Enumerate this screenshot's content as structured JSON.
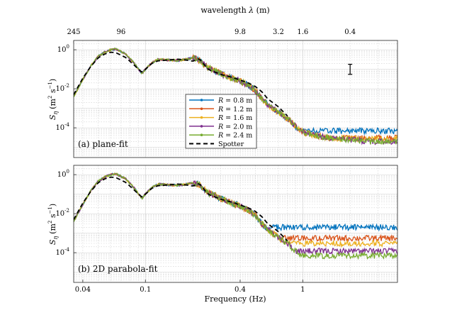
{
  "chart_data": {
    "type": "line",
    "xscale": "log",
    "yscale": "log",
    "xlim": [
      0.035,
      4.0
    ],
    "ylim": [
      3e-06,
      3.0
    ],
    "xlabel": "Frequency (Hz)",
    "ylabel_var": "S",
    "ylabel_sub": "η",
    "ylabel_units": "(m",
    "ylabel_units_sup": "2",
    "ylabel_units_mid": " s",
    "ylabel_units_sup2": "−1",
    "ylabel_units_end": ")",
    "x_ticks": [
      {
        "value": 0.04,
        "label": "0.04"
      },
      {
        "value": 0.1,
        "label": "0.1"
      },
      {
        "value": 0.4,
        "label": "0.4"
      },
      {
        "value": 1,
        "label": "1"
      }
    ],
    "y_ticks": [
      {
        "value": 1,
        "base": "10",
        "exp": "0"
      },
      {
        "value": 0.01,
        "base": "10",
        "exp": "-2"
      },
      {
        "value": 0.0001,
        "base": "10",
        "exp": "-4"
      }
    ],
    "top_axis": {
      "label_pre": "wavelength ",
      "label_sym": "λ",
      "label_post": " (m)",
      "ticks": [
        {
          "freq": 0.035,
          "label": "245"
        },
        {
          "freq": 0.07,
          "label": "96"
        },
        {
          "freq": 0.4,
          "label": "9.8"
        },
        {
          "freq": 0.7,
          "label": "3.2"
        },
        {
          "freq": 1.0,
          "label": "1.6"
        },
        {
          "freq": 2.0,
          "label": "0.4"
        }
      ]
    },
    "error_bar": {
      "freq": 2.0,
      "lower": 0.055,
      "upper": 0.18
    },
    "panels": [
      {
        "label": "(a) plane-fit"
      },
      {
        "label": "(b) 2D parabola-fit"
      }
    ],
    "spectrum_shape": {
      "freqs": [
        0.035,
        0.04,
        0.045,
        0.05,
        0.055,
        0.06,
        0.065,
        0.075,
        0.085,
        0.095,
        0.1,
        0.11,
        0.12,
        0.14,
        0.16,
        0.18,
        0.2,
        0.22,
        0.25,
        0.28,
        0.3,
        0.35,
        0.4,
        0.45,
        0.5,
        0.55,
        0.6,
        0.7,
        0.8,
        0.9,
        1.0,
        1.2,
        1.5,
        2.0,
        2.5,
        3.0,
        4.0
      ],
      "values": [
        0.004,
        0.03,
        0.15,
        0.45,
        0.75,
        1.0,
        1.1,
        0.6,
        0.2,
        0.06,
        0.1,
        0.22,
        0.32,
        0.3,
        0.28,
        0.32,
        0.38,
        0.3,
        0.12,
        0.08,
        0.06,
        0.035,
        0.025,
        0.015,
        0.008,
        0.003,
        0.0015,
        0.0006,
        0.0003,
        0.00012,
        6e-05,
        4e-05,
        3e-05,
        2.5e-05,
        2e-05,
        2e-05,
        2e-05
      ]
    },
    "spotter": {
      "name": "Spotter",
      "freqs": [
        0.035,
        0.04,
        0.045,
        0.05,
        0.055,
        0.06,
        0.065,
        0.075,
        0.085,
        0.095,
        0.1,
        0.11,
        0.12,
        0.14,
        0.16,
        0.18,
        0.2,
        0.22,
        0.25,
        0.3,
        0.35,
        0.4,
        0.45,
        0.5,
        0.55,
        0.6,
        0.7,
        0.8
      ],
      "values": [
        0.005,
        0.035,
        0.14,
        0.38,
        0.6,
        0.75,
        0.7,
        0.4,
        0.16,
        0.07,
        0.1,
        0.2,
        0.27,
        0.3,
        0.33,
        0.3,
        0.26,
        0.35,
        0.1,
        0.055,
        0.04,
        0.028,
        0.02,
        0.013,
        0.007,
        0.003,
        0.0012,
        0.0004
      ]
    },
    "series": [
      {
        "name_var": "R",
        "name_value": " = 0.8 m",
        "color": "#0072BD",
        "panels": [
          {
            "tail_start": 0.5,
            "floor": 7e-05
          },
          {
            "tail_start": 0.5,
            "floor": 0.002
          }
        ]
      },
      {
        "name_var": "R",
        "name_value": " = 1.2 m",
        "color": "#D95319",
        "panels": [
          {
            "tail_start": 0.55,
            "floor": 3e-05
          },
          {
            "tail_start": 0.55,
            "floor": 0.00055
          }
        ]
      },
      {
        "name_var": "R",
        "name_value": " = 1.6 m",
        "color": "#EDB120",
        "panels": [
          {
            "tail_start": 0.6,
            "floor": 2.8e-05
          },
          {
            "tail_start": 0.6,
            "floor": 0.0003
          }
        ]
      },
      {
        "name_var": "R",
        "name_value": " = 2.0 m",
        "color": "#7E2F8E",
        "panels": [
          {
            "tail_start": 0.62,
            "floor": 1.2e-05
          },
          {
            "tail_start": 0.62,
            "floor": 0.00012
          }
        ]
      },
      {
        "name_var": "R",
        "name_value": " = 2.4 m",
        "color": "#77AC30",
        "panels": [
          {
            "tail_start": 0.65,
            "floor": 8.5e-06
          },
          {
            "tail_start": 0.65,
            "floor": 7e-05
          }
        ]
      }
    ]
  }
}
